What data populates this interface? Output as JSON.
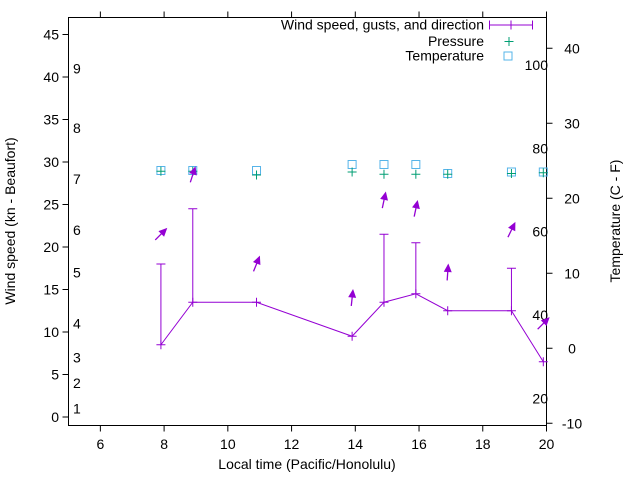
{
  "chart_data": {
    "type": "line",
    "title": "",
    "xlabel": "Local time (Pacific/Honolulu)",
    "ylabel_left": "Wind speed (kn - Beaufort)",
    "ylabel_right": "Temperature (C - F)",
    "grid": false,
    "x_range": [
      5,
      20
    ],
    "y_left_range_kn": [
      -1,
      47
    ],
    "y_right_range_c": [
      -10.3,
      44.1
    ],
    "x_ticks": [
      6,
      8,
      10,
      12,
      14,
      16,
      18,
      20
    ],
    "y_left_ticks_kn": [
      0,
      5,
      10,
      15,
      20,
      25,
      30,
      35,
      40,
      45
    ],
    "y_right_ticks_c": [
      -10,
      0,
      10,
      20,
      30,
      40
    ],
    "beaufort_scale_labels": [
      {
        "label": "1",
        "kn": 1
      },
      {
        "label": "2",
        "kn": 4
      },
      {
        "label": "3",
        "kn": 7
      },
      {
        "label": "4",
        "kn": 11
      },
      {
        "label": "5",
        "kn": 17
      },
      {
        "label": "6",
        "kn": 22
      },
      {
        "label": "7",
        "kn": 28
      },
      {
        "label": "8",
        "kn": 34
      },
      {
        "label": "9",
        "kn": 41
      }
    ],
    "fahrenheit_scale_labels": [
      {
        "label": "20",
        "f": 20
      },
      {
        "label": "40",
        "f": 40
      },
      {
        "label": "60",
        "f": 60
      },
      {
        "label": "80",
        "f": 80
      },
      {
        "label": "100",
        "f": 100
      }
    ],
    "legend_position": "top-right-inside",
    "legend_entries": [
      {
        "label": "Wind speed, gusts, and direction",
        "series": "wind"
      },
      {
        "label": "Pressure",
        "series": "pressure"
      },
      {
        "label": "Temperature",
        "series": "temperature"
      }
    ],
    "series": {
      "wind": {
        "name": "Wind speed, gusts, and direction",
        "color": "#9400d3",
        "style": "line with point markers and gust error bars",
        "points": [
          {
            "x": 7.9,
            "wind_kn": 8.5,
            "gust_kn": 18
          },
          {
            "x": 8.9,
            "wind_kn": 13.5,
            "gust_kn": 24.5
          },
          {
            "x": 10.9,
            "wind_kn": 13.5,
            "gust_kn": null
          },
          {
            "x": 13.9,
            "wind_kn": 9.5,
            "gust_kn": null
          },
          {
            "x": 14.9,
            "wind_kn": 13.5,
            "gust_kn": 21.5
          },
          {
            "x": 15.9,
            "wind_kn": 14.5,
            "gust_kn": 20.5
          },
          {
            "x": 16.9,
            "wind_kn": 12.5,
            "gust_kn": null
          },
          {
            "x": 18.9,
            "wind_kn": 12.5,
            "gust_kn": 17.5
          },
          {
            "x": 19.9,
            "wind_kn": 6.5,
            "gust_kn": null
          }
        ],
        "direction_arrows": [
          {
            "x": 7.9,
            "y_kn": 21.5,
            "angle_deg": 45
          },
          {
            "x": 8.9,
            "y_kn": 28.5,
            "angle_deg": 72
          },
          {
            "x": 10.9,
            "y_kn": 18,
            "angle_deg": 68
          },
          {
            "x": 13.9,
            "y_kn": 14,
            "angle_deg": 84
          },
          {
            "x": 14.9,
            "y_kn": 25.5,
            "angle_deg": 78
          },
          {
            "x": 15.9,
            "y_kn": 24.5,
            "angle_deg": 78
          },
          {
            "x": 16.9,
            "y_kn": 17,
            "angle_deg": 86
          },
          {
            "x": 18.9,
            "y_kn": 22,
            "angle_deg": 64
          },
          {
            "x": 19.9,
            "y_kn": 11,
            "angle_deg": 45
          }
        ]
      },
      "pressure": {
        "name": "Pressure",
        "color": "#009e73",
        "marker": "plus",
        "points_on_right_axis_c": [
          {
            "x": 7.9,
            "y_c": 23.6
          },
          {
            "x": 8.9,
            "y_c": 23.6
          },
          {
            "x": 10.9,
            "y_c": 23.1
          },
          {
            "x": 13.9,
            "y_c": 23.5
          },
          {
            "x": 14.9,
            "y_c": 23.2
          },
          {
            "x": 15.9,
            "y_c": 23.2
          },
          {
            "x": 16.9,
            "y_c": 23.2
          },
          {
            "x": 18.9,
            "y_c": 23.3
          },
          {
            "x": 19.9,
            "y_c": 23.4
          }
        ]
      },
      "temperature": {
        "name": "Temperature",
        "color": "#56b4e9",
        "marker": "open-square",
        "points_c": [
          {
            "x": 7.9,
            "c": 23.7
          },
          {
            "x": 8.9,
            "c": 23.7
          },
          {
            "x": 10.9,
            "c": 23.7
          },
          {
            "x": 13.9,
            "c": 24.5
          },
          {
            "x": 14.9,
            "c": 24.5
          },
          {
            "x": 15.9,
            "c": 24.5
          },
          {
            "x": 16.9,
            "c": 23.3
          },
          {
            "x": 18.9,
            "c": 23.5
          },
          {
            "x": 19.9,
            "c": 23.5
          }
        ]
      }
    },
    "colors": {
      "wind": "#9400d3",
      "pressure": "#009e73",
      "temperature": "#56b4e9",
      "axis": "#000000",
      "background": "#ffffff"
    }
  }
}
